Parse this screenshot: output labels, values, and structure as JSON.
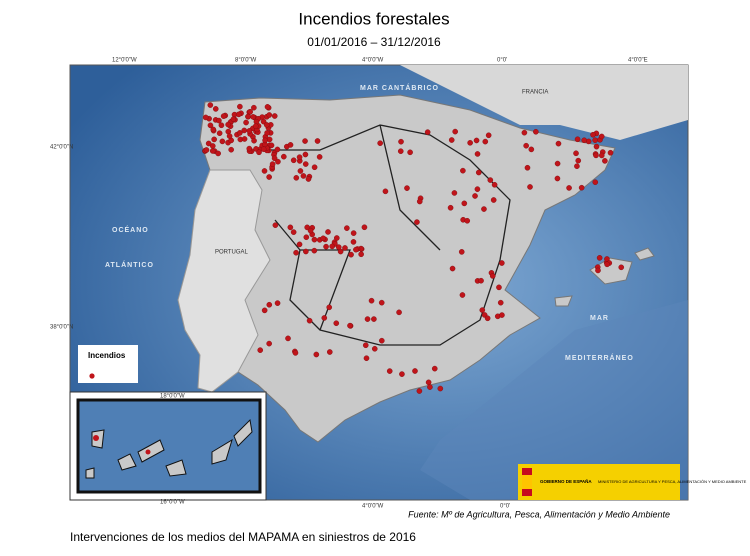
{
  "header": {
    "title": "Incendios forestales",
    "subtitle": "01/01/2016 – 31/12/2016"
  },
  "map": {
    "labels": {
      "cantabrico": "MAR CANTÁBRICO",
      "francia": "FRANCIA",
      "portugal": "PORTUGAL",
      "oceano": "OCÉANO",
      "atlantico": "ATLÁNTICO",
      "mar": "MAR",
      "mediterraneo": "MEDITERRÁNEO"
    },
    "coords": {
      "w12": "12°0'0\"W",
      "w8": "8°0'0\"W",
      "w4": "4°0'0\"W",
      "e0": "0°0'",
      "e4": "4°0'0\"E",
      "n42": "42°0'0\"N",
      "n38": "38°0'0\"N",
      "w18": "18°0'0\"W",
      "w16": "16°0'0\"W"
    },
    "legend": {
      "title": "Incendios"
    },
    "logo": {
      "gov": "GOBIERNO DE ESPAÑA",
      "ministry": "MINISTERIO DE AGRICULTURA Y PESCA, ALIMENTACIÓN Y MEDIO AMBIENTE"
    },
    "source": "Fuente: Mº de Agricultura, Pesca, Alimentación y Medio Ambiente"
  },
  "footer": "Intervenciones de los medios del MAPAMA en siniestros de 2016"
}
